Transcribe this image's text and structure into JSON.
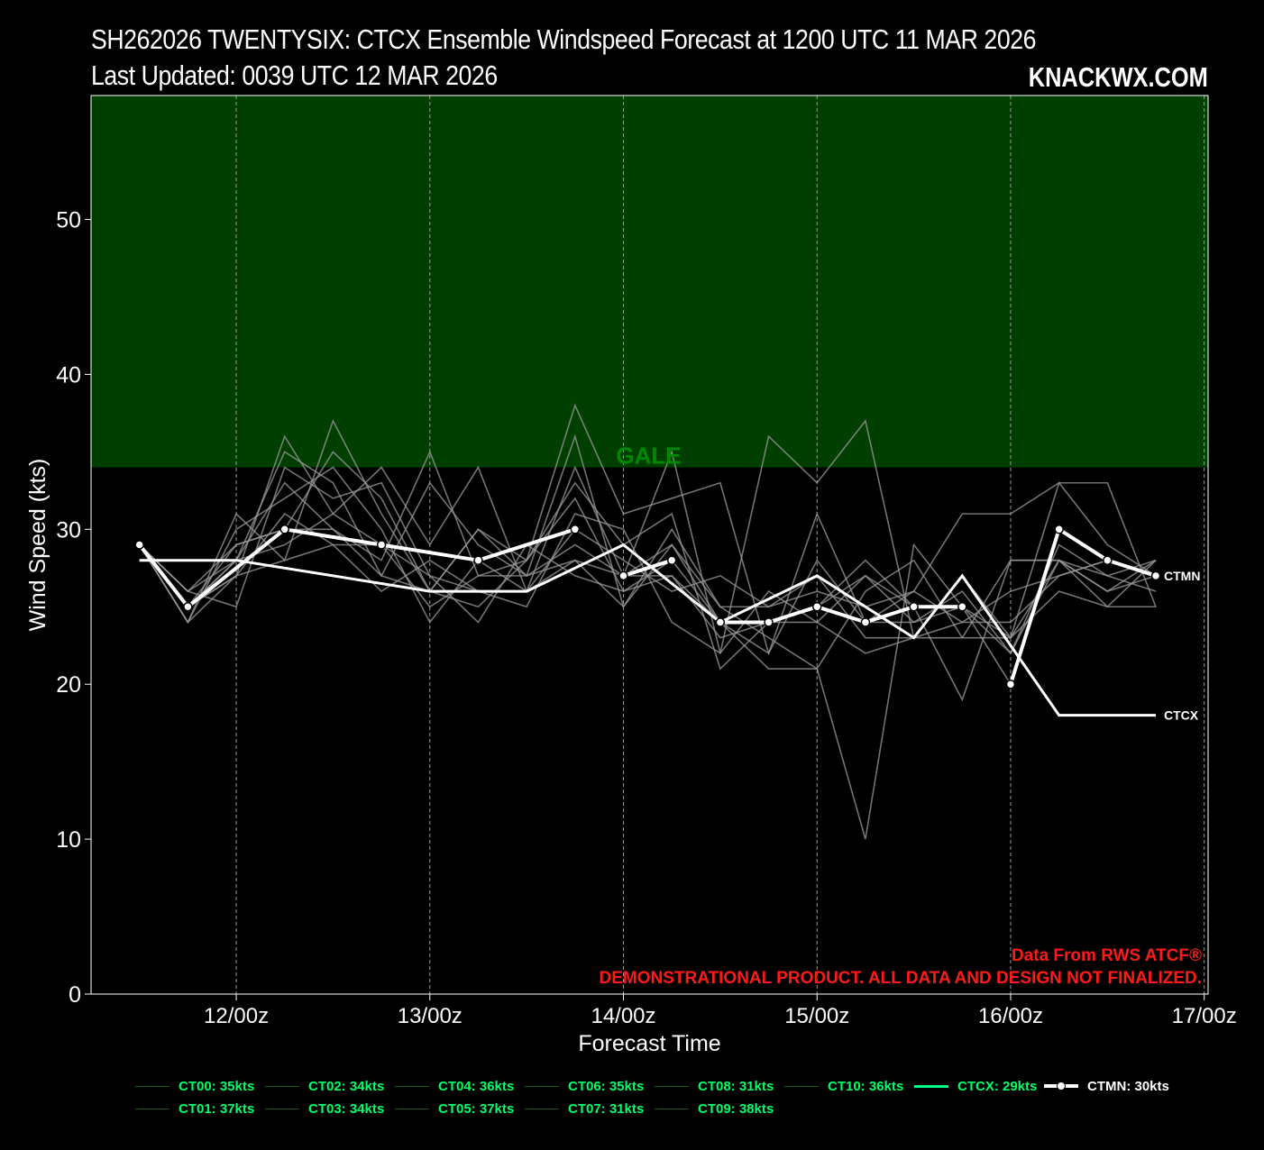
{
  "header": {
    "title": "SH262026 TWENTYSIX: CTCX Ensemble Windspeed Forecast at 1200 UTC 11 MAR 2026",
    "updated": "Last Updated: 0039 UTC 12 MAR 2026",
    "brand": "KNACKWX.COM"
  },
  "chart_data": {
    "type": "line",
    "xlabel": "Forecast Time",
    "ylabel": "Wind Speed (kts)",
    "ylim": [
      0,
      58
    ],
    "xlim": [
      -0.75,
      5.02
    ],
    "grid": "vertical dashed",
    "x_ticks": [
      {
        "x": 0,
        "label": "12/00z"
      },
      {
        "x": 1,
        "label": "13/00z"
      },
      {
        "x": 2,
        "label": "14/00z"
      },
      {
        "x": 3,
        "label": "15/00z"
      },
      {
        "x": 4,
        "label": "16/00z"
      },
      {
        "x": 5,
        "label": "17/00z"
      }
    ],
    "y_ticks": [
      0,
      10,
      20,
      30,
      40,
      50
    ],
    "bands": [
      {
        "label": "GALE",
        "from": 34,
        "to": 58,
        "color": "#003f00",
        "label_color": "#008800"
      }
    ],
    "x": [
      -0.5,
      -0.25,
      0,
      0.25,
      0.5,
      0.75,
      1,
      1.25,
      1.5,
      1.75,
      2,
      2.25,
      2.5,
      2.75,
      3,
      3.25,
      3.5,
      3.75,
      4,
      4.25,
      4.5,
      4.75
    ],
    "ensemble_members": [
      {
        "values": [
          29,
          24,
          31,
          28,
          37,
          31,
          26,
          25,
          28,
          38,
          31,
          32,
          33,
          22,
          31,
          24,
          26,
          31,
          31,
          33,
          33,
          25
        ]
      },
      {
        "values": [
          29,
          25,
          27,
          36,
          31,
          34,
          29,
          34,
          26,
          34,
          27,
          35,
          22,
          36,
          33,
          37,
          23,
          23,
          28,
          28,
          25,
          25
        ]
      },
      {
        "values": [
          29,
          26,
          28,
          35,
          33,
          27,
          33,
          29,
          27,
          36,
          25,
          29,
          25,
          23,
          21,
          10,
          29,
          25,
          20,
          30,
          28,
          27
        ]
      },
      {
        "values": [
          29,
          25,
          29,
          30,
          35,
          32,
          26,
          30,
          28,
          32,
          26,
          27,
          23,
          24,
          25,
          28,
          25,
          19,
          28,
          28,
          26,
          28
        ]
      },
      {
        "values": [
          29,
          24,
          27,
          31,
          29,
          26,
          28,
          26,
          25,
          31,
          30,
          24,
          22,
          26,
          24,
          22,
          23,
          27,
          23,
          33,
          29,
          27
        ]
      },
      {
        "values": [
          29,
          25,
          28,
          33,
          30,
          28,
          35,
          27,
          28,
          33,
          29,
          31,
          21,
          24,
          25,
          27,
          24,
          25,
          22,
          28,
          27,
          28
        ]
      },
      {
        "values": [
          29,
          26,
          25,
          34,
          32,
          33,
          27,
          24,
          29,
          27,
          26,
          28,
          24,
          21,
          21,
          26,
          28,
          23,
          23,
          26,
          25,
          28
        ]
      },
      {
        "values": [
          29,
          24,
          30,
          32,
          34,
          30,
          24,
          28,
          26,
          30,
          28,
          26,
          27,
          25,
          27,
          23,
          23,
          24,
          26,
          27,
          28,
          27
        ]
      },
      {
        "values": [
          29,
          26,
          29,
          30,
          30,
          27,
          26,
          30,
          27,
          29,
          27,
          29,
          24,
          22,
          28,
          24,
          24,
          26,
          22,
          29,
          27,
          26
        ]
      },
      {
        "values": [
          29,
          25,
          27,
          28,
          29,
          29,
          27,
          26,
          26,
          28,
          25,
          30,
          25,
          25,
          26,
          25,
          26,
          24,
          24,
          27,
          28,
          27
        ]
      },
      {
        "values": [
          29,
          25,
          28,
          29,
          31,
          29,
          25,
          27,
          27,
          28,
          27,
          27,
          24,
          24,
          24,
          27,
          25,
          25,
          23,
          28,
          26,
          27
        ]
      }
    ],
    "series": [
      {
        "name": "CTCX",
        "x": [
          -0.5,
          0,
          1,
          1.5,
          2,
          2.5,
          3,
          3.5,
          3.75,
          4.25,
          4.75
        ],
        "values": [
          28,
          28,
          26,
          26,
          29,
          24,
          27,
          23,
          27,
          18,
          18
        ]
      },
      {
        "name": "CTMN",
        "x": [
          -0.5,
          -0.25,
          0.25,
          0.75,
          1.25,
          1.75,
          2,
          2.25,
          2.5,
          2.75,
          3,
          3.25,
          3.5,
          3.75,
          4,
          4.25,
          4.5,
          4.75
        ],
        "values": [
          29,
          25,
          30,
          29,
          28,
          30,
          27,
          28,
          24,
          24,
          25,
          24,
          25,
          25,
          20,
          30,
          28,
          27
        ],
        "markers": true,
        "segments": [
          [
            0,
            5
          ],
          [
            6,
            7
          ],
          [
            8,
            13
          ],
          [
            14,
            17
          ]
        ]
      }
    ],
    "line_labels": {
      "ctmn": "CTMN",
      "ctcx": "CTCX"
    },
    "annotations": {
      "source": "Data From RWS ATCF®",
      "disclaimer": "DEMONSTRATIONAL PRODUCT. ALL DATA AND DESIGN NOT FINALIZED.",
      "color": "#ff1a1a"
    },
    "legend": [
      {
        "label": "CT00: 35kts",
        "kind": "member"
      },
      {
        "label": "CT01: 37kts",
        "kind": "member"
      },
      {
        "label": "CT02: 34kts",
        "kind": "member"
      },
      {
        "label": "CT03: 34kts",
        "kind": "member"
      },
      {
        "label": "CT04: 36kts",
        "kind": "member"
      },
      {
        "label": "CT05: 37kts",
        "kind": "member"
      },
      {
        "label": "CT06: 35kts",
        "kind": "member"
      },
      {
        "label": "CT07: 31kts",
        "kind": "member"
      },
      {
        "label": "CT08: 31kts",
        "kind": "member"
      },
      {
        "label": "CT09: 38kts",
        "kind": "member"
      },
      {
        "label": "CT10: 36kts",
        "kind": "member"
      },
      {
        "label": "CTCX: 29kts",
        "kind": "ctcx"
      },
      {
        "label": "CTMN: 30kts",
        "kind": "ctmn"
      }
    ],
    "colors": {
      "member_line": "#9a9a9a",
      "legend_text": "#00ff66",
      "ctcx_swatch": "#00ff88",
      "member_swatch": "#1a5a1a",
      "main_line": "#ffffff"
    }
  }
}
